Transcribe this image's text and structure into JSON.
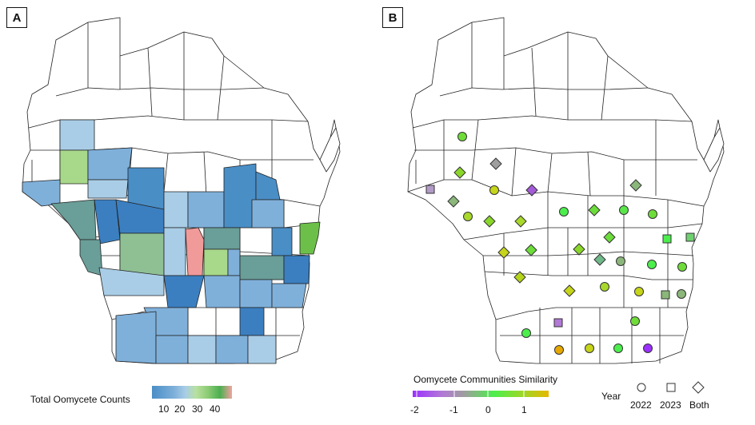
{
  "panels": {
    "a": {
      "label": "A"
    },
    "b": {
      "label": "B"
    }
  },
  "legend_a": {
    "title": "Total Oomycete Counts",
    "ticks": [
      "10",
      "20",
      "30",
      "40"
    ],
    "colors": [
      "#4a8ec6",
      "#7fb0da",
      "#a9cde6",
      "#b8e0a0",
      "#8ccb74",
      "#4caf50",
      "#f4a0a0"
    ]
  },
  "legend_b": {
    "title": "Oomycete Communities Similarity",
    "ticks": [
      "-2",
      "-1",
      "0",
      "1"
    ],
    "colors": [
      "#9b30ff",
      "#b279d6",
      "#9e9e9e",
      "#4cee4c",
      "#9ad82a",
      "#e6b800"
    ],
    "year_label": "Year",
    "years": [
      "2022",
      "2023",
      "Both"
    ]
  },
  "map_colors": {
    "outline": "#222222",
    "base": "#ffffff",
    "blue_light": "#a9cde6",
    "blue_mid": "#7fb0da",
    "blue_dark": "#3b7fc0",
    "green_light": "#a8d88a",
    "green_mid": "#6cc04a",
    "teal": "#6a9e98",
    "pink": "#f19a9a"
  }
}
